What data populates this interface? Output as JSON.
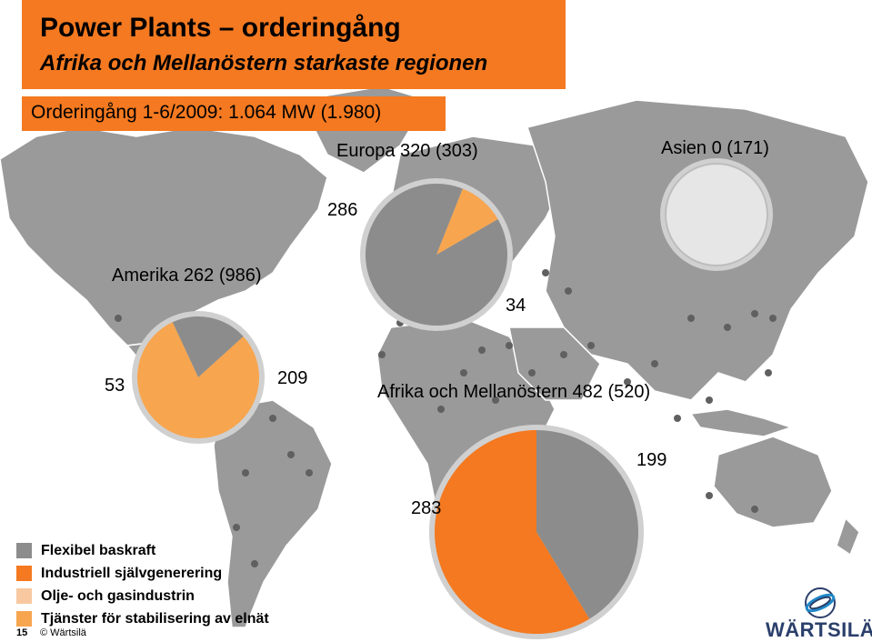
{
  "header": {
    "title": "Power Plants – orderingång",
    "subtitle": "Afrika och Mellanöstern starkaste regionen",
    "order_intake": "Orderingång 1-6/2009: 1.064 MW (1.980)"
  },
  "colors": {
    "flexibel_baskraft": "#8c8c8c",
    "industriell": "#f47920",
    "olje_gas": "#f8c8a0",
    "tjanster": "#f7a54f",
    "title_bg": "#f47920",
    "asien_gray": "#e6e6e6"
  },
  "chart_data": [
    {
      "type": "pie",
      "title": "Europa 320 (303)",
      "series": [
        {
          "name": "Flexibel baskraft",
          "value": 286,
          "label": "286",
          "color": "#8c8c8c"
        },
        {
          "name": "Tjänster för stabilisering av elnät",
          "value": 34,
          "label": "34",
          "color": "#f7a54f"
        }
      ]
    },
    {
      "type": "pie",
      "title": "Asien 0 (171)",
      "series": []
    },
    {
      "type": "pie",
      "title": "Amerika 262 (986)",
      "series": [
        {
          "name": "Flexibel baskraft",
          "value": 53,
          "label": "53",
          "color": "#8c8c8c"
        },
        {
          "name": "Tjänster för stabilisering av elnät",
          "value": 209,
          "label": "209",
          "color": "#f7a54f"
        }
      ]
    },
    {
      "type": "pie",
      "title": "Afrika och Mellanöstern 482 (520)",
      "series": [
        {
          "name": "Flexibel baskraft",
          "value": 199,
          "label": "199",
          "color": "#8c8c8c"
        },
        {
          "name": "Industriell självgenerering",
          "value": 283,
          "label": "283",
          "color": "#f47920"
        }
      ]
    }
  ],
  "legend": [
    {
      "label": "Flexibel baskraft",
      "color": "#8c8c8c"
    },
    {
      "label": "Industriell självgenerering",
      "color": "#f47920"
    },
    {
      "label": "Olje- och gasindustrin",
      "color": "#f8c8a0"
    },
    {
      "label": "Tjänster för stabilisering av elnät",
      "color": "#f7a54f"
    }
  ],
  "footer": {
    "page": "15",
    "copyright": "© Wärtsilä"
  },
  "logo": {
    "text": "WÄRTSILÄ"
  }
}
